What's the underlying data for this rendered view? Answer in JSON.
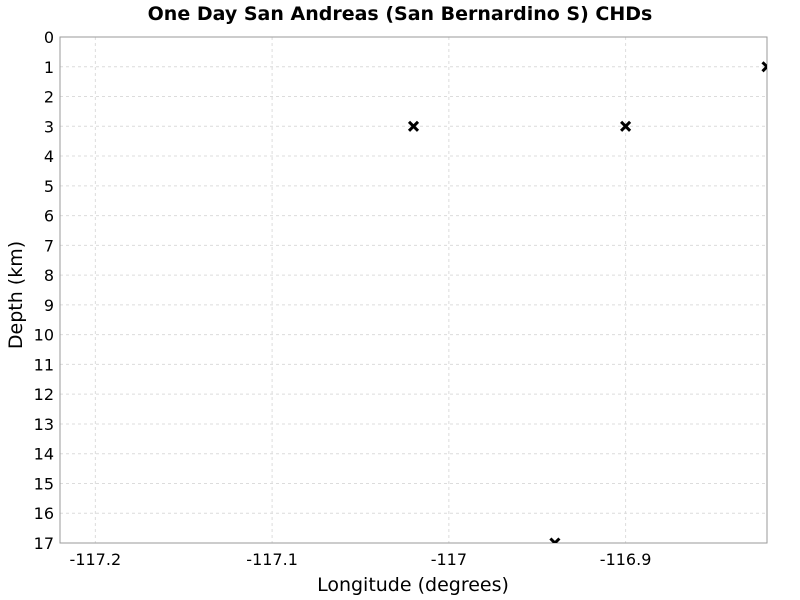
{
  "chart_data": {
    "type": "scatter",
    "title": "One Day San Andreas (San Bernardino S) CHDs",
    "xlabel": "Longitude (degrees)",
    "ylabel": "Depth (km)",
    "xlim": [
      -117.22,
      -116.82
    ],
    "ylim": [
      0,
      17
    ],
    "y_inverted": true,
    "grid": true,
    "marker": "x",
    "colors": {
      "background": "#ffffff",
      "grid": "#dcdcdc",
      "frame": "#9a9a9a",
      "marker": "#000000",
      "text": "#000000"
    },
    "x_ticks": [
      {
        "value": -117.2,
        "label": "-117.2"
      },
      {
        "value": -117.1,
        "label": "-117.1"
      },
      {
        "value": -117.0,
        "label": "-117"
      },
      {
        "value": -116.9,
        "label": "-116.9"
      }
    ],
    "y_ticks": [
      {
        "value": 0,
        "label": "0"
      },
      {
        "value": 1,
        "label": "1"
      },
      {
        "value": 2,
        "label": "2"
      },
      {
        "value": 3,
        "label": "3"
      },
      {
        "value": 4,
        "label": "4"
      },
      {
        "value": 5,
        "label": "5"
      },
      {
        "value": 6,
        "label": "6"
      },
      {
        "value": 7,
        "label": "7"
      },
      {
        "value": 8,
        "label": "8"
      },
      {
        "value": 9,
        "label": "9"
      },
      {
        "value": 10,
        "label": "10"
      },
      {
        "value": 11,
        "label": "11"
      },
      {
        "value": 12,
        "label": "12"
      },
      {
        "value": 13,
        "label": "13"
      },
      {
        "value": 14,
        "label": "14"
      },
      {
        "value": 15,
        "label": "15"
      },
      {
        "value": 16,
        "label": "16"
      },
      {
        "value": 17,
        "label": "17"
      }
    ],
    "points": [
      {
        "x": -117.02,
        "y": 3
      },
      {
        "x": -116.94,
        "y": 17
      },
      {
        "x": -116.9,
        "y": 3
      },
      {
        "x": -116.82,
        "y": 1
      }
    ]
  }
}
